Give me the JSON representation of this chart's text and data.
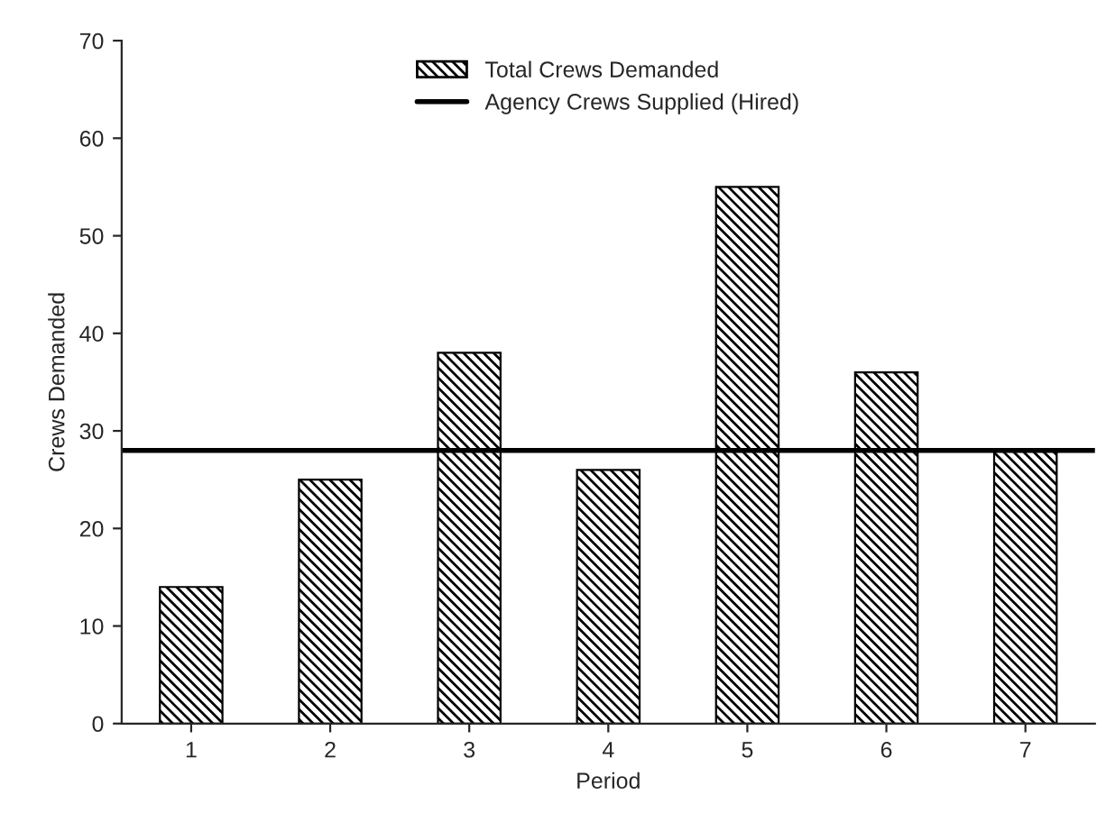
{
  "chart_data": {
    "type": "bar",
    "xlabel": "Period",
    "ylabel": "Crews Demanded",
    "categories": [
      "1",
      "2",
      "3",
      "4",
      "5",
      "6",
      "7"
    ],
    "series": [
      {
        "name": "Total Crews Demanded",
        "color": "#000000",
        "values": [
          14,
          25,
          38,
          26,
          55,
          36,
          28
        ]
      }
    ],
    "ref_lines": [
      {
        "axis": "y",
        "value": 28,
        "label": "Agency Crews Supplied (Hired)",
        "color": "#000000",
        "line_style": "solid"
      }
    ],
    "ylim": [
      0,
      70
    ],
    "yticks": [
      0,
      10,
      20,
      30,
      40,
      50,
      60,
      70
    ],
    "grid": false,
    "legend": "top"
  }
}
